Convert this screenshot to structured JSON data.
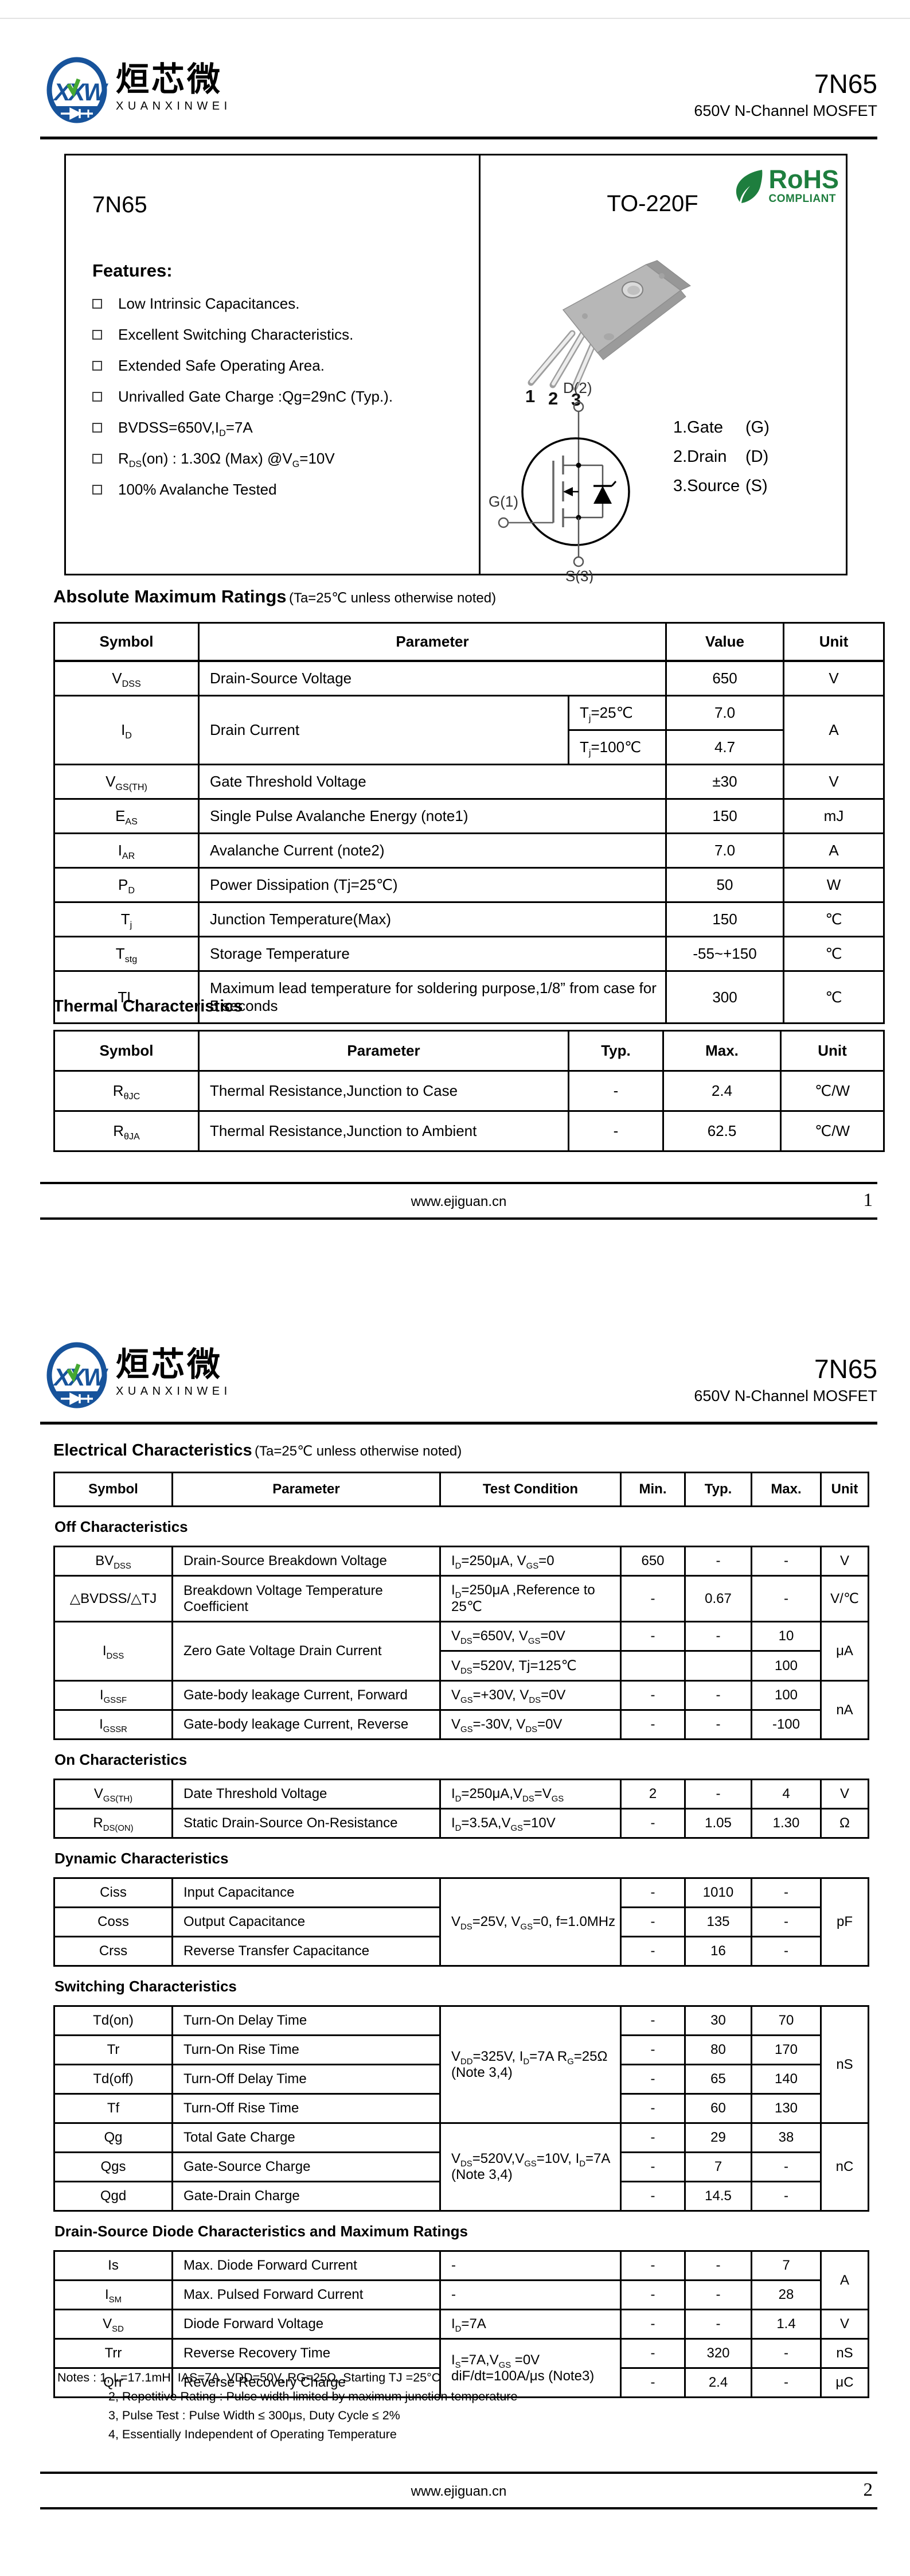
{
  "brand": {
    "monogram": "XXW",
    "name_cn": "烜芯微",
    "name_en": "XUANXINWEI"
  },
  "masthead": {
    "part": "7N65",
    "subtitle": "650V N-Channel MOSFET"
  },
  "intro": {
    "part": "7N65",
    "package": "TO-220F",
    "rohs": {
      "line1": "RoHS",
      "line2": "COMPLIANT"
    },
    "features_title": "Features:",
    "features": [
      "Low Intrinsic Capacitances.",
      "Excellent Switching Characteristics.",
      "Extended Safe Operating Area.",
      "Unrivalled Gate Charge :Qg=29nC (Typ.).",
      "BVDSS=650V,I_{D}=7A",
      "R_{DS}(on) : 1.30Ω (Max) @V_{G}=10V",
      "100% Avalanche Tested"
    ],
    "pin_numbers": [
      "1",
      "2",
      "3"
    ],
    "symbol_labels": {
      "drain": "D(2)",
      "gate": "G(1)",
      "source": "S(3)"
    },
    "pin_legend": [
      {
        "name": "1.Gate",
        "abbr": "(G)"
      },
      {
        "name": "2.Drain",
        "abbr": "(D)"
      },
      {
        "name": "3.Source",
        "abbr": "(S)"
      }
    ]
  },
  "abs_max": {
    "title": "Absolute Maximum Ratings",
    "note": "(Ta=25℃ unless otherwise noted)",
    "headers": {
      "symbol": "Symbol",
      "parameter": "Parameter",
      "value": "Value",
      "unit": "Unit"
    },
    "rows": [
      {
        "symbol": "V_{DSS}",
        "parameter": "Drain-Source Voltage",
        "value": "650",
        "unit": "V"
      },
      {
        "symbol": "I_{D}",
        "parameter": "Drain Current",
        "conditions": [
          {
            "cond": "T_{j}=25℃",
            "value": "7.0"
          },
          {
            "cond": "T_{j}=100℃",
            "value": "4.7"
          }
        ],
        "unit": "A"
      },
      {
        "symbol": "V_{GS(TH)}",
        "parameter": "Gate Threshold Voltage",
        "value": "±30",
        "unit": "V"
      },
      {
        "symbol": "E_{AS}",
        "parameter": "Single Pulse Avalanche Energy (note1)",
        "value": "150",
        "unit": "mJ"
      },
      {
        "symbol": "I_{AR}",
        "parameter": "Avalanche Current (note2)",
        "value": "7.0",
        "unit": "A"
      },
      {
        "symbol": "P_{D}",
        "parameter": "Power Dissipation (Tj=25℃)",
        "value": "50",
        "unit": "W"
      },
      {
        "symbol": "T_{j}",
        "parameter": "Junction Temperature(Max)",
        "value": "150",
        "unit": "℃"
      },
      {
        "symbol": "T_{stg}",
        "parameter": "Storage Temperature",
        "value": "-55~+150",
        "unit": "℃"
      },
      {
        "symbol": "TL",
        "parameter": "Maximum lead temperature for soldering purpose,1/8” from case for 5 seconds",
        "value": "300",
        "unit": "℃"
      }
    ]
  },
  "thermal": {
    "title": "Thermal Characteristics",
    "headers": {
      "symbol": "Symbol",
      "parameter": "Parameter",
      "typ": "Typ.",
      "max": "Max.",
      "unit": "Unit"
    },
    "rows": [
      {
        "symbol": "R_{θJC}",
        "parameter": "Thermal Resistance,Junction to Case",
        "typ": "-",
        "max": "2.4",
        "unit": "℃/W"
      },
      {
        "symbol": "R_{θJA}",
        "parameter": "Thermal Resistance,Junction to Ambient",
        "typ": "-",
        "max": "62.5",
        "unit": "℃/W"
      }
    ]
  },
  "elec": {
    "title": "Electrical Characteristics",
    "note": "(Ta=25℃ unless otherwise noted)",
    "headers": {
      "symbol": "Symbol",
      "parameter": "Parameter",
      "cond": "Test Condition",
      "min": "Min.",
      "typ": "Typ.",
      "max": "Max.",
      "unit": "Unit"
    },
    "sections": {
      "off": {
        "title": "Off Characteristics",
        "rows": [
          {
            "sym": "BV_{DSS}",
            "par": "Drain-Source Breakdown Voltage",
            "cond": "I_{D}=250μA,  V_{GS}=0",
            "min": "650",
            "typ": "-",
            "max": "-",
            "unit": "V"
          },
          {
            "sym": "△BVDSS/△TJ",
            "par": "Breakdown Voltage Temperature Coefficient",
            "cond": "I_{D}=250μA ,Reference to 25℃",
            "min": "-",
            "typ": "0.67",
            "max": "-",
            "unit": "V/℃"
          },
          {
            "sym": "I_{DSS}",
            "par": "Zero Gate Voltage Drain Current",
            "cond": "V_{DS}=650V, V_{GS}=0V",
            "min": "-",
            "typ": "-",
            "max": "10",
            "unit": "μA"
          },
          {
            "cond": "V_{DS}=520V, Tj=125℃",
            "min": "",
            "typ": "",
            "max": "100"
          },
          {
            "sym": "I_{GSSF}",
            "par": "Gate-body leakage Current, Forward",
            "cond": "V_{GS}=+30V, V_{DS}=0V",
            "min": "-",
            "typ": "-",
            "max": "100",
            "unit": "nA"
          },
          {
            "sym": "I_{GSSR}",
            "par": "Gate-body leakage Current, Reverse",
            "cond": "V_{GS}=-30V, V_{DS}=0V",
            "min": "-",
            "typ": "-",
            "max": "-100"
          }
        ]
      },
      "on": {
        "title": "On Characteristics",
        "rows": [
          {
            "sym": "V_{GS(TH)}",
            "par": "Date Threshold Voltage",
            "cond": "I_{D}=250μA,V_{DS}=V_{GS}",
            "min": "2",
            "typ": "-",
            "max": "4",
            "unit": "V"
          },
          {
            "sym": "R_{DS(ON)}",
            "par": "Static Drain-Source On-Resistance",
            "cond": "I_{D}=3.5A,V_{GS}=10V",
            "min": "-",
            "typ": "1.05",
            "max": "1.30",
            "unit": "Ω"
          }
        ]
      },
      "dynamic": {
        "title": "Dynamic Characteristics",
        "shared_cond": "V_{DS}=25V,  V_{GS}=0, f=1.0MHz",
        "rows": [
          {
            "sym": "Ciss",
            "par": "Input Capacitance",
            "min": "-",
            "typ": "1010",
            "max": "-",
            "unit": "pF"
          },
          {
            "sym": "Coss",
            "par": "Output Capacitance",
            "min": "-",
            "typ": "135",
            "max": "-"
          },
          {
            "sym": "Crss",
            "par": "Reverse Transfer Capacitance",
            "min": "-",
            "typ": "16",
            "max": "-"
          }
        ]
      },
      "switching": {
        "title": "Switching Characteristics",
        "cond_a": "V_{DD}=325V,  I_{D}=7A R_{G}=25Ω (Note 3,4)",
        "cond_b": "V_{DS}=520V,V_{GS}=10V, I_{D}=7A (Note 3,4)",
        "rows": [
          {
            "sym": "Td(on)",
            "par": "Turn-On Delay Time",
            "min": "-",
            "typ": "30",
            "max": "70",
            "unit": "nS"
          },
          {
            "sym": "Tr",
            "par": "Turn-On Rise Time",
            "min": "-",
            "typ": "80",
            "max": "170"
          },
          {
            "sym": "Td(off)",
            "par": "Turn-Off Delay Time",
            "min": "-",
            "typ": "65",
            "max": "140"
          },
          {
            "sym": "Tf",
            "par": "Turn-Off Rise Time",
            "min": "-",
            "typ": "60",
            "max": "130"
          },
          {
            "sym": "Qg",
            "par": "Total Gate Charge",
            "min": "-",
            "typ": "29",
            "max": "38",
            "unit": "nC"
          },
          {
            "sym": "Qgs",
            "par": "Gate-Source Charge",
            "min": "-",
            "typ": "7",
            "max": "-"
          },
          {
            "sym": "Qgd",
            "par": "Gate-Drain Charge",
            "min": "-",
            "typ": "14.5",
            "max": "-"
          }
        ]
      },
      "diode": {
        "title": "Drain-Source Diode Characteristics and Maximum Ratings",
        "cond_rr": "I_{S}=7A,V_{GS} =0V diF/dt=100A/μs (Note3)",
        "rows": [
          {
            "sym": "Is",
            "par": "Max. Diode Forward Current",
            "cond": "-",
            "min": "-",
            "typ": "-",
            "max": "7",
            "unit": "A"
          },
          {
            "sym": "I_{SM}",
            "par": "Max. Pulsed Forward Current",
            "cond": "-",
            "min": "-",
            "typ": "-",
            "max": "28"
          },
          {
            "sym": "V_{SD}",
            "par": "Diode Forward Voltage",
            "cond": "I_{D}=7A",
            "min": "-",
            "typ": "-",
            "max": "1.4",
            "unit": "V"
          },
          {
            "sym": "Trr",
            "par": "Reverse Recovery Time",
            "min": "-",
            "typ": "320",
            "max": "-",
            "unit": "nS"
          },
          {
            "sym": "Qrr",
            "par": "Reverse Recovery Charge",
            "min": "-",
            "typ": "2.4",
            "max": "-",
            "unit": "μC"
          }
        ]
      }
    }
  },
  "notes": {
    "label": "Notes : ",
    "lines": [
      "1, L=17.1mH, IAS=7A, VDD=50V, RG=25Ω, Starting TJ =25°C",
      "2, Repetitive Rating : Pulse width limited by maximum junction temperature",
      "3, Pulse Test : Pulse Width ≤ 300μs, Duty Cycle ≤ 2%",
      "4, Essentially Independent of Operating Temperature"
    ]
  },
  "footer": {
    "url": "www.ejiguan.cn",
    "page1": "1",
    "page2": "2"
  }
}
